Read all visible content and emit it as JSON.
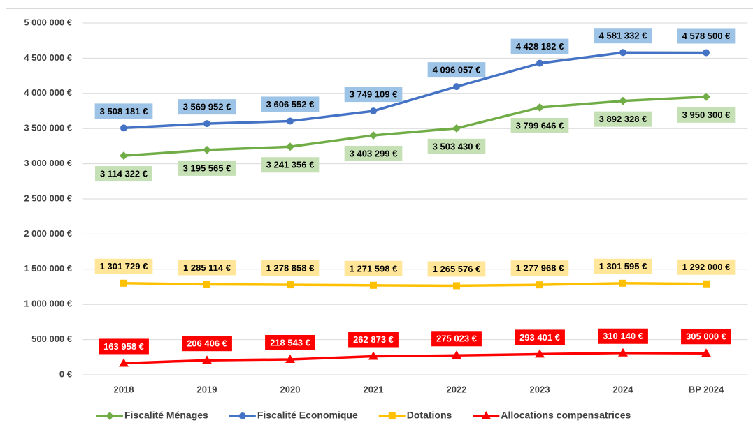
{
  "chart_data": {
    "type": "line",
    "categories": [
      "2018",
      "2019",
      "2020",
      "2021",
      "2022",
      "2023",
      "2024",
      "BP 2024"
    ],
    "ylim": [
      0,
      5000000
    ],
    "yticks": [
      {
        "value": 0,
        "label": "0 €"
      },
      {
        "value": 500000,
        "label": "500 000 €"
      },
      {
        "value": 1000000,
        "label": "1 000 000 €"
      },
      {
        "value": 1500000,
        "label": "1 500 000 €"
      },
      {
        "value": 2000000,
        "label": "2 000 000 €"
      },
      {
        "value": 2500000,
        "label": "2 500 000 €"
      },
      {
        "value": 3000000,
        "label": "3 000 000 €"
      },
      {
        "value": 3500000,
        "label": "3 500 000 €"
      },
      {
        "value": 4000000,
        "label": "4 000 000 €"
      },
      {
        "value": 4500000,
        "label": "4 500 000 €"
      },
      {
        "value": 5000000,
        "label": "5 000 000 €"
      }
    ],
    "grid": true,
    "legend": "bottom",
    "series": [
      {
        "name": "Fiscalité Ménages",
        "color": "#70ad47",
        "marker": "diamond",
        "label_position": "below",
        "label_color": "#c5e0b4",
        "values": [
          3114322,
          3195565,
          3241356,
          3403299,
          3503430,
          3799646,
          3892328,
          3950300
        ],
        "value_labels": [
          "3 114 322 €",
          "3 195 565 €",
          "3 241 356 €",
          "3 403 299 €",
          "3 503 430 €",
          "3 799 646 €",
          "3 892 328 €",
          "3 950 300 €"
        ]
      },
      {
        "name": "Fiscalité Economique",
        "color": "#4472c4",
        "marker": "circle",
        "label_position": "above",
        "label_color": "#9dc3e6",
        "values": [
          3508181,
          3569952,
          3606552,
          3749109,
          4096057,
          4428182,
          4581332,
          4578500
        ],
        "value_labels": [
          "3 508 181 €",
          "3 569 952 €",
          "3 606 552 €",
          "3 749 109 €",
          "4 096 057 €",
          "4 428 182 €",
          "4 581 332 €",
          "4 578 500 €"
        ]
      },
      {
        "name": "Dotations",
        "color": "#ffc000",
        "marker": "square",
        "label_position": "above",
        "label_color": "#ffe699",
        "values": [
          1301729,
          1285114,
          1278858,
          1271598,
          1265576,
          1277968,
          1301595,
          1292000
        ],
        "value_labels": [
          "1 301 729 €",
          "1 285 114 €",
          "1 278 858 €",
          "1 271 598 €",
          "1 265 576 €",
          "1 277 968 €",
          "1 301 595 €",
          "1 292 000 €"
        ]
      },
      {
        "name": "Allocations compensatrices",
        "color": "#ff0000",
        "marker": "triangle",
        "label_position": "above",
        "label_color": "#ff0000",
        "label_text_color": "#ffffff",
        "values": [
          163958,
          206406,
          218543,
          262873,
          275023,
          293401,
          310140,
          305000
        ],
        "value_labels": [
          "163 958 €",
          "206 406 €",
          "218 543 €",
          "262 873 €",
          "275 023 €",
          "293 401 €",
          "310 140 €",
          "305 000 €"
        ]
      }
    ]
  }
}
